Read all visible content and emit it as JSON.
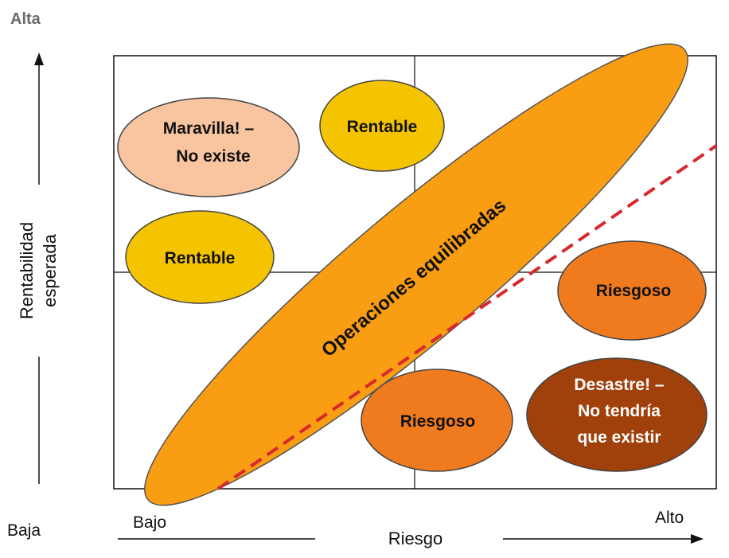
{
  "y_axis": {
    "top_label": "Alta",
    "bottom_label": "Baja",
    "title_line1": "Rentabilidad",
    "title_line2": "esperada"
  },
  "x_axis": {
    "left_label": "Bajo",
    "right_label": "Alto",
    "title": "Riesgo"
  },
  "bubbles": {
    "maravilla": {
      "line1": "Maravilla!  –",
      "line2": "No existe",
      "color": "#f9c4a0"
    },
    "rentable_top": {
      "label": "Rentable",
      "color": "#f5c400"
    },
    "rentable_left": {
      "label": "Rentable",
      "color": "#f5c400"
    },
    "riesgoso_right": {
      "label": "Riesgoso",
      "color": "#f07a1e"
    },
    "riesgoso_bottom": {
      "label": "Riesgoso",
      "color": "#f07a1e"
    },
    "desastre": {
      "line1": "Desastre!  –",
      "line2": "No tendría",
      "line3": "que existir",
      "color": "#a0400a"
    },
    "operaciones": {
      "label": "Operaciones equilibradas",
      "color": "#f99d12"
    }
  },
  "colors": {
    "dashed_line": "#d7282e",
    "outline": "#000000"
  }
}
